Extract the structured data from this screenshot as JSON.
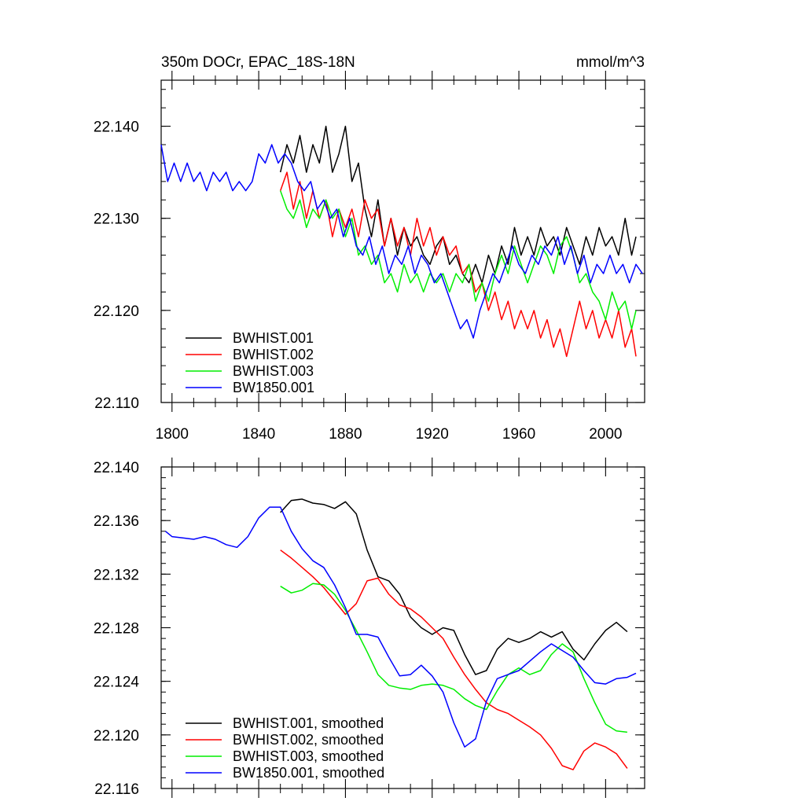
{
  "chart_data": [
    {
      "type": "line",
      "title": "350m DOCr, EPAC_18S-18N",
      "units": "mmol/m^3",
      "xlim": [
        1795,
        2018
      ],
      "ylim": [
        22.11,
        22.145
      ],
      "x_ticks": [
        1800,
        1840,
        1880,
        1920,
        1960,
        2000
      ],
      "y_ticks": [
        "22.110",
        "22.120",
        "22.130",
        "22.140"
      ],
      "y_tick_values": [
        22.11,
        22.12,
        22.13,
        22.14
      ],
      "legend_position": "bottom-left",
      "series": [
        {
          "name": "BWHIST.001",
          "color": "#000000",
          "x": [
            1850,
            1853,
            1856,
            1859,
            1862,
            1865,
            1868,
            1871,
            1874,
            1877,
            1880,
            1883,
            1886,
            1889,
            1892,
            1895,
            1898,
            1901,
            1904,
            1907,
            1910,
            1913,
            1916,
            1919,
            1922,
            1925,
            1928,
            1931,
            1934,
            1937,
            1940,
            1943,
            1946,
            1949,
            1952,
            1955,
            1958,
            1961,
            1964,
            1967,
            1970,
            1973,
            1976,
            1979,
            1982,
            1985,
            1988,
            1991,
            1994,
            1997,
            2000,
            2003,
            2006,
            2009,
            2012,
            2014
          ],
          "y": [
            22.135,
            22.138,
            22.136,
            22.139,
            22.135,
            22.138,
            22.136,
            22.14,
            22.135,
            22.137,
            22.14,
            22.134,
            22.136,
            22.131,
            22.128,
            22.132,
            22.127,
            22.13,
            22.126,
            22.129,
            22.127,
            22.128,
            22.126,
            22.125,
            22.127,
            22.128,
            22.125,
            22.126,
            22.124,
            22.123,
            22.125,
            22.123,
            22.126,
            22.124,
            22.127,
            22.125,
            22.129,
            22.126,
            22.128,
            22.126,
            22.129,
            22.127,
            22.128,
            22.126,
            22.129,
            22.127,
            22.125,
            22.128,
            22.126,
            22.129,
            22.127,
            22.128,
            22.126,
            22.13,
            22.126,
            22.128
          ]
        },
        {
          "name": "BWHIST.002",
          "color": "#ff0000",
          "x": [
            1850,
            1853,
            1856,
            1859,
            1862,
            1865,
            1868,
            1871,
            1874,
            1877,
            1880,
            1883,
            1886,
            1889,
            1892,
            1895,
            1898,
            1901,
            1904,
            1907,
            1910,
            1913,
            1916,
            1919,
            1922,
            1925,
            1928,
            1931,
            1934,
            1937,
            1940,
            1943,
            1946,
            1949,
            1952,
            1955,
            1958,
            1961,
            1964,
            1967,
            1970,
            1973,
            1976,
            1979,
            1982,
            1985,
            1988,
            1991,
            1994,
            1997,
            2000,
            2003,
            2006,
            2009,
            2012,
            2014
          ],
          "y": [
            22.133,
            22.135,
            22.131,
            22.134,
            22.13,
            22.133,
            22.13,
            22.132,
            22.128,
            22.131,
            22.129,
            22.131,
            22.128,
            22.132,
            22.13,
            22.131,
            22.127,
            22.13,
            22.127,
            22.129,
            22.126,
            22.13,
            22.127,
            22.129,
            22.126,
            22.128,
            22.126,
            22.127,
            22.124,
            22.125,
            22.122,
            22.123,
            22.12,
            22.122,
            22.119,
            22.121,
            22.118,
            22.12,
            22.118,
            22.12,
            22.117,
            22.119,
            22.116,
            22.118,
            22.115,
            22.118,
            22.121,
            22.118,
            22.12,
            22.117,
            22.119,
            22.117,
            22.12,
            22.116,
            22.118,
            22.115
          ]
        },
        {
          "name": "BWHIST.003",
          "color": "#00ee00",
          "x": [
            1850,
            1853,
            1856,
            1859,
            1862,
            1865,
            1868,
            1871,
            1874,
            1877,
            1880,
            1883,
            1886,
            1889,
            1892,
            1895,
            1898,
            1901,
            1904,
            1907,
            1910,
            1913,
            1916,
            1919,
            1922,
            1925,
            1928,
            1931,
            1934,
            1937,
            1940,
            1943,
            1946,
            1949,
            1952,
            1955,
            1958,
            1961,
            1964,
            1967,
            1970,
            1973,
            1976,
            1979,
            1982,
            1985,
            1988,
            1991,
            1994,
            1997,
            2000,
            2003,
            2006,
            2009,
            2012,
            2014
          ],
          "y": [
            22.133,
            22.131,
            22.13,
            22.132,
            22.129,
            22.131,
            22.13,
            22.132,
            22.13,
            22.131,
            22.128,
            22.13,
            22.126,
            22.127,
            22.125,
            22.126,
            22.123,
            22.124,
            22.122,
            22.125,
            22.123,
            22.124,
            22.122,
            22.124,
            22.123,
            22.124,
            22.122,
            22.124,
            22.123,
            22.125,
            22.121,
            22.123,
            22.121,
            22.124,
            22.126,
            22.124,
            22.127,
            22.125,
            22.123,
            22.125,
            22.127,
            22.126,
            22.124,
            22.127,
            22.128,
            22.126,
            22.123,
            22.124,
            22.122,
            22.121,
            22.119,
            22.122,
            22.12,
            22.121,
            22.118,
            22.12
          ]
        },
        {
          "name": "BW1850.001",
          "color": "#0000ff",
          "x": [
            1795,
            1798,
            1801,
            1804,
            1807,
            1810,
            1813,
            1816,
            1819,
            1822,
            1825,
            1828,
            1831,
            1834,
            1837,
            1840,
            1843,
            1846,
            1849,
            1852,
            1855,
            1858,
            1861,
            1864,
            1867,
            1870,
            1873,
            1876,
            1879,
            1882,
            1885,
            1888,
            1891,
            1894,
            1897,
            1900,
            1903,
            1906,
            1909,
            1912,
            1915,
            1918,
            1921,
            1924,
            1927,
            1930,
            1933,
            1936,
            1939,
            1942,
            1945,
            1948,
            1951,
            1954,
            1957,
            1960,
            1963,
            1966,
            1969,
            1972,
            1975,
            1978,
            1981,
            1984,
            1987,
            1990,
            1993,
            1996,
            1999,
            2002,
            2005,
            2008,
            2011,
            2014,
            2017
          ],
          "y": [
            22.138,
            22.134,
            22.136,
            22.134,
            22.136,
            22.134,
            22.135,
            22.133,
            22.135,
            22.134,
            22.135,
            22.133,
            22.134,
            22.133,
            22.134,
            22.137,
            22.136,
            22.138,
            22.136,
            22.137,
            22.136,
            22.134,
            22.133,
            22.134,
            22.131,
            22.132,
            22.13,
            22.131,
            22.128,
            22.13,
            22.127,
            22.126,
            22.128,
            22.125,
            22.127,
            22.124,
            22.126,
            22.125,
            22.127,
            22.124,
            22.126,
            22.125,
            22.123,
            22.124,
            22.122,
            22.12,
            22.118,
            22.119,
            22.117,
            22.12,
            22.122,
            22.124,
            22.123,
            22.125,
            22.127,
            22.125,
            22.124,
            22.126,
            22.125,
            22.127,
            22.126,
            22.128,
            22.125,
            22.127,
            22.124,
            22.126,
            22.123,
            22.125,
            22.124,
            22.126,
            22.124,
            22.125,
            22.123,
            22.125,
            22.124
          ]
        }
      ]
    },
    {
      "type": "line",
      "xlim": [
        1795,
        2018
      ],
      "ylim": [
        22.116,
        22.14
      ],
      "x_ticks": [
        1800,
        1840,
        1880,
        1920,
        1960,
        2000
      ],
      "y_ticks": [
        "22.116",
        "22.120",
        "22.124",
        "22.128",
        "22.132",
        "22.136",
        "22.140"
      ],
      "y_tick_values": [
        22.116,
        22.12,
        22.124,
        22.128,
        22.132,
        22.136,
        22.14
      ],
      "legend_position": "bottom-left",
      "series": [
        {
          "name": "BWHIST.001, smoothed",
          "color": "#000000",
          "x": [
            1850,
            1855,
            1860,
            1865,
            1870,
            1875,
            1880,
            1885,
            1890,
            1895,
            1900,
            1905,
            1910,
            1915,
            1920,
            1925,
            1930,
            1935,
            1940,
            1945,
            1950,
            1955,
            1960,
            1965,
            1970,
            1975,
            1980,
            1985,
            1990,
            1995,
            2000,
            2005,
            2010
          ],
          "y": [
            22.1366,
            22.1375,
            22.1376,
            22.1373,
            22.1372,
            22.1369,
            22.1374,
            22.1365,
            22.1338,
            22.1318,
            22.1315,
            22.1305,
            22.1288,
            22.128,
            22.1275,
            22.128,
            22.1278,
            22.126,
            22.1245,
            22.1248,
            22.1264,
            22.1272,
            22.1269,
            22.1272,
            22.1277,
            22.1273,
            22.1277,
            22.1264,
            22.1256,
            22.1268,
            22.1278,
            22.1284,
            22.1277
          ]
        },
        {
          "name": "BWHIST.002, smoothed",
          "color": "#ff0000",
          "x": [
            1850,
            1855,
            1860,
            1865,
            1870,
            1875,
            1880,
            1885,
            1890,
            1895,
            1900,
            1905,
            1910,
            1915,
            1920,
            1925,
            1930,
            1935,
            1940,
            1945,
            1950,
            1955,
            1960,
            1965,
            1970,
            1975,
            1980,
            1985,
            1990,
            1995,
            2000,
            2005,
            2010
          ],
          "y": [
            22.1338,
            22.1332,
            22.1325,
            22.1318,
            22.131,
            22.13,
            22.129,
            22.1298,
            22.1315,
            22.1317,
            22.1305,
            22.1297,
            22.1294,
            22.1288,
            22.128,
            22.1272,
            22.1258,
            22.1245,
            22.1234,
            22.1224,
            22.1219,
            22.1216,
            22.1211,
            22.1206,
            22.12,
            22.119,
            22.1177,
            22.1174,
            22.1188,
            22.1194,
            22.1191,
            22.1186,
            22.1175
          ]
        },
        {
          "name": "BWHIST.003, smoothed",
          "color": "#00ee00",
          "x": [
            1850,
            1855,
            1860,
            1865,
            1870,
            1875,
            1880,
            1885,
            1890,
            1895,
            1900,
            1905,
            1910,
            1915,
            1920,
            1925,
            1930,
            1935,
            1940,
            1945,
            1950,
            1955,
            1960,
            1965,
            1970,
            1975,
            1980,
            1985,
            1990,
            1995,
            2000,
            2005,
            2010
          ],
          "y": [
            22.1311,
            22.1306,
            22.1308,
            22.1313,
            22.1312,
            22.1305,
            22.1293,
            22.1278,
            22.1262,
            22.1245,
            22.1237,
            22.1235,
            22.1234,
            22.1237,
            22.1238,
            22.1237,
            22.1234,
            22.1227,
            22.1222,
            22.1219,
            22.1233,
            22.1245,
            22.125,
            22.1245,
            22.1248,
            22.126,
            22.1268,
            22.1262,
            22.1242,
            22.1224,
            22.1208,
            22.1203,
            22.1202
          ]
        },
        {
          "name": "BW1850.001, smoothed",
          "color": "#0000ff",
          "x": [
            1797,
            1800,
            1805,
            1810,
            1815,
            1820,
            1825,
            1830,
            1835,
            1840,
            1845,
            1850,
            1855,
            1860,
            1865,
            1870,
            1875,
            1880,
            1885,
            1890,
            1895,
            1900,
            1905,
            1910,
            1915,
            1920,
            1925,
            1930,
            1935,
            1940,
            1945,
            1950,
            1955,
            1960,
            1965,
            1970,
            1975,
            1980,
            1985,
            1990,
            1995,
            2000,
            2005,
            2010,
            2014
          ],
          "y": [
            22.1352,
            22.1348,
            22.1347,
            22.1346,
            22.1348,
            22.1346,
            22.1342,
            22.134,
            22.1348,
            22.1362,
            22.137,
            22.137,
            22.1352,
            22.1339,
            22.133,
            22.1325,
            22.1312,
            22.1295,
            22.1275,
            22.1275,
            22.1273,
            22.1258,
            22.1244,
            22.1245,
            22.1252,
            22.1244,
            22.1232,
            22.1209,
            22.1191,
            22.1197,
            22.1225,
            22.1242,
            22.1245,
            22.1248,
            22.1255,
            22.1262,
            22.1268,
            22.1263,
            22.1258,
            22.1248,
            22.1239,
            22.1238,
            22.1242,
            22.1243,
            22.1246
          ]
        }
      ]
    }
  ]
}
